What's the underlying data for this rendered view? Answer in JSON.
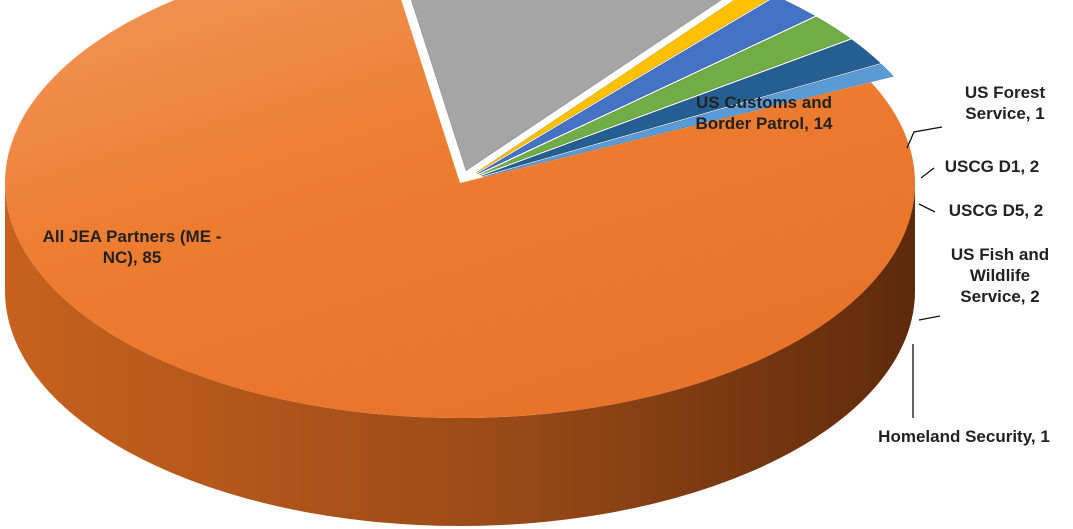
{
  "chart_data": {
    "type": "pie",
    "style": "3d-exploded",
    "slices": [
      {
        "label": "All JEA Partners (ME - NC)",
        "value": 85,
        "color": "#ED7D31",
        "label_lines": [
          "All JEA Partners (ME -",
          "NC), 85"
        ]
      },
      {
        "label": "US Customs and Border Patrol",
        "value": 14,
        "color": "#A5A5A5",
        "label_lines": [
          "US Customs and",
          "Border Patrol, 14"
        ]
      },
      {
        "label": "US Forest Service",
        "value": 1,
        "color": "#FFC000",
        "label_lines": [
          "US Forest",
          "Service, 1"
        ]
      },
      {
        "label": "USCG D1",
        "value": 2,
        "color": "#4472C4",
        "label_lines": [
          "USCG D1, 2"
        ]
      },
      {
        "label": "USCG D5",
        "value": 2,
        "color": "#70AD47",
        "label_lines": [
          "USCG D5, 2"
        ]
      },
      {
        "label": "US Fish and Wildlife Service",
        "value": 2,
        "color": "#255E91",
        "label_lines": [
          "US Fish and",
          "Wildlife",
          "Service, 2"
        ]
      },
      {
        "label": "Homeland Security",
        "value": 1,
        "color": "#5B9BD5",
        "label_lines": [
          "Homeland Security, 1"
        ]
      }
    ]
  }
}
